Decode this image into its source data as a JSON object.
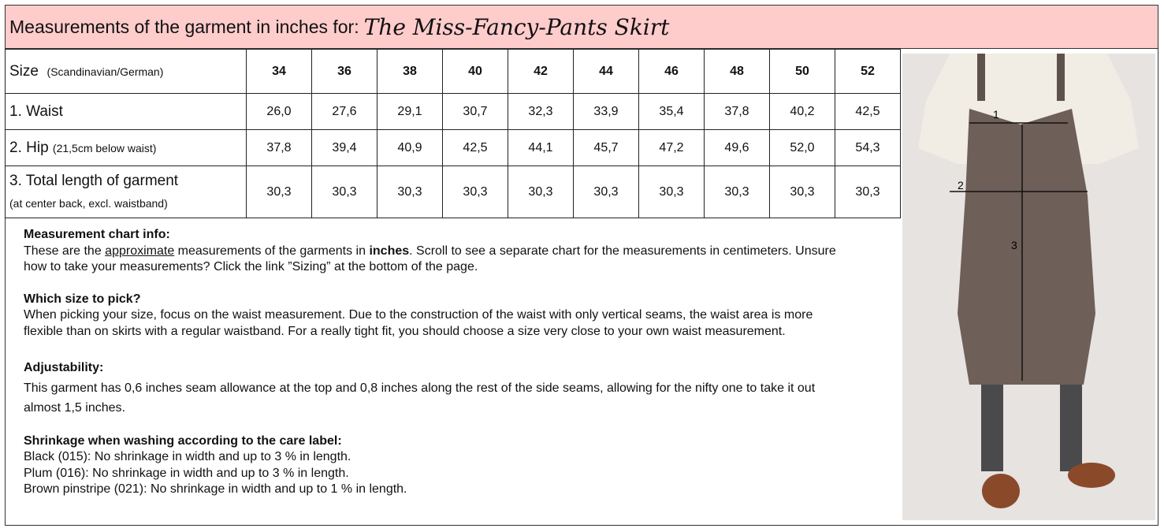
{
  "header": {
    "lead": "Measurements of the garment in inches for:",
    "product": "The Miss-Fancy-Pants Skirt"
  },
  "table": {
    "size_label": "Size",
    "size_note": "(Scandinavian/German)",
    "sizes": [
      "34",
      "36",
      "38",
      "40",
      "42",
      "44",
      "46",
      "48",
      "50",
      "52"
    ],
    "rows": [
      {
        "label": "1. Waist",
        "note": "",
        "values": [
          "26,0",
          "27,6",
          "29,1",
          "30,7",
          "32,3",
          "33,9",
          "35,4",
          "37,8",
          "40,2",
          "42,5"
        ]
      },
      {
        "label": "2. Hip",
        "note": "(21,5cm below waist)",
        "values": [
          "37,8",
          "39,4",
          "40,9",
          "42,5",
          "44,1",
          "45,7",
          "47,2",
          "49,6",
          "52,0",
          "54,3"
        ]
      },
      {
        "label": "3. Total length of garment",
        "note": "(at center back, excl. waistband)",
        "values": [
          "30,3",
          "30,3",
          "30,3",
          "30,3",
          "30,3",
          "30,3",
          "30,3",
          "30,3",
          "30,3",
          "30,3"
        ]
      }
    ]
  },
  "info": {
    "chart_title": "Measurement chart info:",
    "chart_t1": "These are the ",
    "chart_u": "approximate",
    "chart_t2": " measurements of the garments in ",
    "chart_b": "inches",
    "chart_t3": ". Scroll to see a separate chart for the measurements in centimeters. Unsure how to take your measurements? Click the link ”Sizing” at the bottom of the page.",
    "size_title": "Which size to pick?",
    "size_text": "When picking your size, focus on the waist measurement. Due to the construction of the waist with only vertical seams, the waist area is more flexible than on skirts with a regular waistband. For a really tight fit, you should choose a size very close to your own waist measurement.",
    "adj_title": "Adjustability:",
    "adj_text": "This garment has 0,6 inches seam allowance at the top and 0,8 inches along the rest of the side seams, allowing for the nifty one to take it out almost 1,5 inches.",
    "shrink_title": "Shrinkage when washing according to the care label:",
    "shrink": [
      "Black (015): No shrinkage in width and up to 3 % in length.",
      "Plum (016): No shrinkage in width and up to 3 % in length.",
      "Brown pinstripe (021): No shrinkage in width and up to 1 % in length."
    ]
  },
  "photo": {
    "markers": [
      "1",
      "2",
      "3"
    ],
    "skirt_color": "#6e5f58",
    "background": "#e6e3e1"
  },
  "colors": {
    "header_bg": "#ffcccc"
  }
}
